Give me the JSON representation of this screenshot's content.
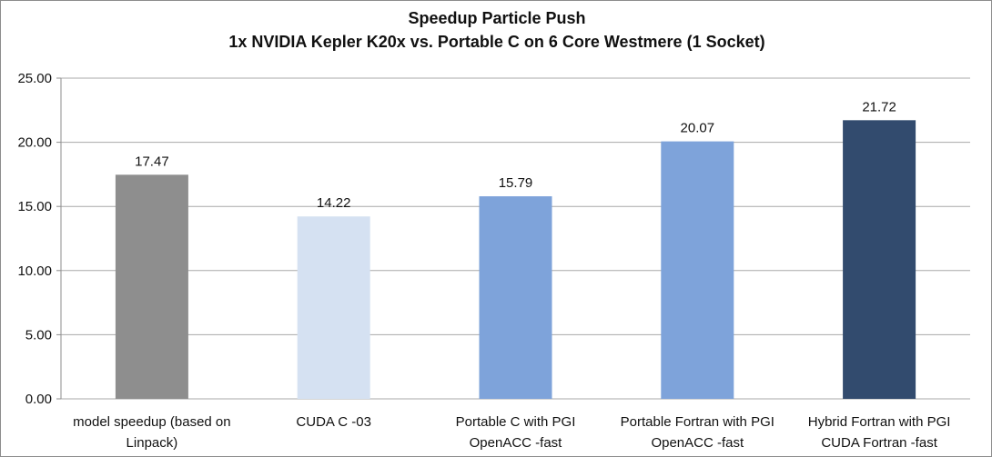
{
  "chart_data": {
    "type": "bar",
    "title": "Speedup Particle Push",
    "subtitle": "1x NVIDIA Kepler K20x vs. Portable C on 6 Core Westmere (1 Socket)",
    "xlabel": "",
    "ylabel": "",
    "ylim": [
      0,
      25
    ],
    "yticks": [
      "0.00",
      "5.00",
      "10.00",
      "15.00",
      "20.00",
      "25.00"
    ],
    "grid": true,
    "legend": "none",
    "categories": [
      [
        "model speedup (based on",
        "Linpack)"
      ],
      [
        "CUDA C -03"
      ],
      [
        "Portable C with PGI",
        "OpenACC -fast"
      ],
      [
        "Portable Fortran with PGI",
        "OpenACC -fast"
      ],
      [
        "Hybrid Fortran with PGI",
        "CUDA Fortran -fast"
      ]
    ],
    "values": [
      17.47,
      14.22,
      15.79,
      20.07,
      21.72
    ],
    "data_labels": [
      "17.47",
      "14.22",
      "15.79",
      "20.07",
      "21.72"
    ],
    "bar_colors": [
      "#8e8e8e",
      "#d5e1f2",
      "#7ea3da",
      "#7ea3da",
      "#324b6e"
    ]
  }
}
